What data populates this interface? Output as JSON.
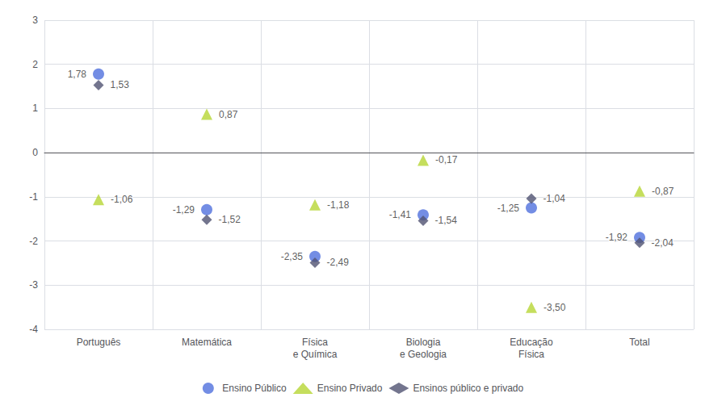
{
  "chart_data": {
    "type": "scatter",
    "categories": [
      "Português",
      "Matemática",
      "Física\ne Química",
      "Biologia\ne Geologia",
      "Educação\nFísica",
      "Total"
    ],
    "series": [
      {
        "name": "Ensino Público",
        "marker": "circle",
        "values": [
          1.78,
          -1.29,
          -2.35,
          -1.41,
          -1.25,
          -1.92
        ],
        "value_labels": [
          "1,78",
          "-1,29",
          "-2,35",
          "-1,41",
          "-1,25",
          "-1,92"
        ]
      },
      {
        "name": "Ensino Privado",
        "marker": "triangle",
        "values": [
          -1.06,
          0.87,
          -1.18,
          -0.17,
          -3.5,
          -0.87
        ],
        "value_labels": [
          "-1,06",
          "0,87",
          "-1,18",
          "-0,17",
          "-3,50",
          "-0,87"
        ]
      },
      {
        "name": "Ensinos público e privado",
        "marker": "diamond",
        "values": [
          1.53,
          -1.52,
          -2.49,
          -1.54,
          -1.04,
          -2.04
        ],
        "value_labels": [
          "1,53",
          "-1,52",
          "-2,49",
          "-1,54",
          "-1,04",
          "-2,04"
        ]
      }
    ],
    "ylim": [
      -4,
      3
    ],
    "yticks": [
      -4,
      -3,
      -2,
      -1,
      0,
      1,
      2,
      3
    ],
    "grid": true,
    "legend": "bottom",
    "data_labels": true
  }
}
